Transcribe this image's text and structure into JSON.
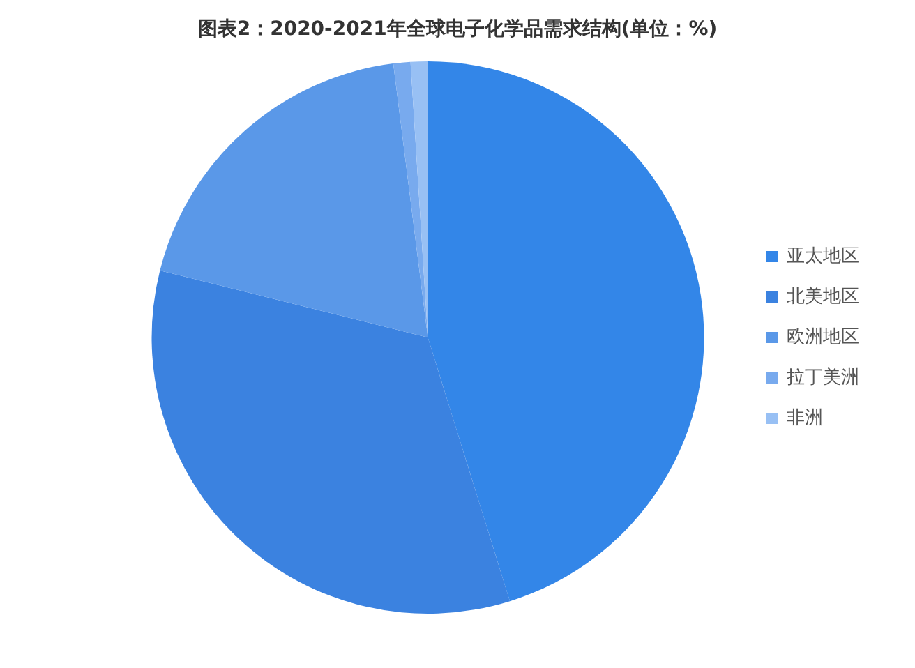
{
  "chart_data": {
    "type": "pie",
    "title": "图表2：2020-2021年全球电子化学品需求结构(单位：%)",
    "categories": [
      "亚太地区",
      "北美地区",
      "欧洲地区",
      "拉丁美洲",
      "非洲"
    ],
    "values": [
      45.2,
      33.7,
      19.1,
      1.0,
      1.0
    ],
    "colors": [
      "#3386e8",
      "#3b82e0",
      "#5a98e8",
      "#78aaee",
      "#98c0f4"
    ],
    "legend": "right"
  }
}
